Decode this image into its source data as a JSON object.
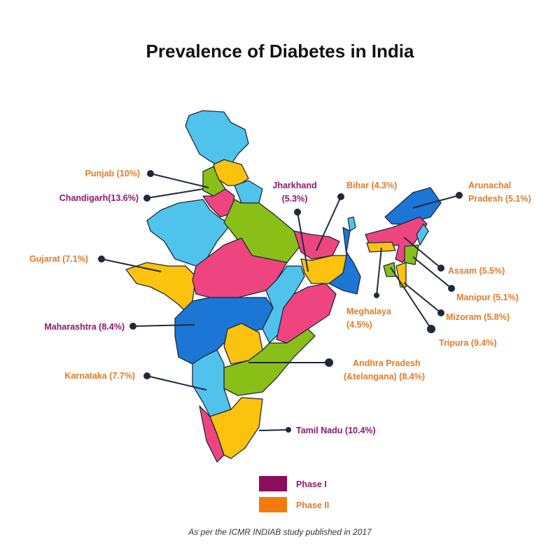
{
  "title": "Prevalence of Diabetes in India",
  "colors": {
    "phase1": "#8c0d5c",
    "phase2": "#f57a0a",
    "label_phase1": "#8b1a6b",
    "label_phase2": "#e07b2a"
  },
  "labels": {
    "punjab": "Punjab (10%)",
    "chandigarh": "Chandigarh(13.6%)",
    "gujarat": "Gujarat (7.1%)",
    "maharashtra": "Maharashtra (8.4%)",
    "karnataka": "Karnataka (7.7%)",
    "jharkhand_1": "Jharkhand",
    "jharkhand_2": "(5.3%)",
    "bihar": "Bihar (4.3%)",
    "arunachal_1": "Arunachal",
    "arunachal_2": "Pradesh (5.1%)",
    "assam": "Assam (5.5%)",
    "manipur": "Manipur (5.1%)",
    "mizoram": "Mizoram (5.8%)",
    "tripura": "Tripura (9.4%)",
    "meghalaya_1": "Meghalaya",
    "meghalaya_2": "(4.5%)",
    "andhra_1": "Andhra Pradesh",
    "andhra_2": "(&telangana) (8.4%)",
    "tamil_nadu": "Tamil Nadu (10.4%)"
  },
  "legend": [
    {
      "label": "Phase I"
    },
    {
      "label": "Phase II"
    }
  ],
  "footnote": "As per the ICMR INDIAB study published in 2017"
}
